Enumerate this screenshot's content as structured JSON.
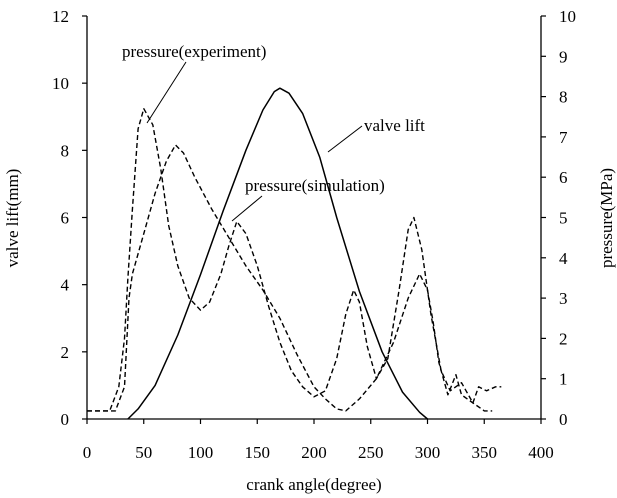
{
  "chart_data": {
    "type": "line",
    "xlabel": "crank angle(degree)",
    "ylabel_left": "valve lift(mm)",
    "ylabel_right": "pressure(MPa)",
    "xlim": [
      0,
      400
    ],
    "ylim_left": [
      0,
      12
    ],
    "ylim_right": [
      0,
      10
    ],
    "x_ticks": [
      "0",
      "50",
      "100",
      "150",
      "200",
      "250",
      "300",
      "350",
      "400"
    ],
    "y_left_ticks": [
      "0",
      "2",
      "4",
      "6",
      "8",
      "10",
      "12"
    ],
    "y_right_ticks": [
      "0",
      "1",
      "2",
      "3",
      "4",
      "5",
      "6",
      "7",
      "8",
      "9",
      "10"
    ],
    "grid": false,
    "legend": "none",
    "series": [
      {
        "name": "valve lift",
        "axis": "left",
        "style": "solid",
        "points": [
          [
            36,
            0
          ],
          [
            45,
            0.3
          ],
          [
            60,
            1.0
          ],
          [
            80,
            2.5
          ],
          [
            100,
            4.3
          ],
          [
            120,
            6.2
          ],
          [
            140,
            8.0
          ],
          [
            155,
            9.2
          ],
          [
            165,
            9.75
          ],
          [
            170,
            9.85
          ],
          [
            178,
            9.7
          ],
          [
            190,
            9.1
          ],
          [
            205,
            7.8
          ],
          [
            220,
            6.0
          ],
          [
            240,
            3.8
          ],
          [
            260,
            2.0
          ],
          [
            278,
            0.8
          ],
          [
            293,
            0.2
          ],
          [
            300,
            0
          ]
        ]
      },
      {
        "name": "pressure(experiment)",
        "axis": "right",
        "style": "dashed",
        "points": [
          [
            0,
            0.2
          ],
          [
            20,
            0.2
          ],
          [
            28,
            0.8
          ],
          [
            33,
            2.0
          ],
          [
            36,
            3.5
          ],
          [
            40,
            5.2
          ],
          [
            45,
            7.2
          ],
          [
            50,
            7.7
          ],
          [
            58,
            7.3
          ],
          [
            65,
            6.2
          ],
          [
            72,
            4.8
          ],
          [
            80,
            3.8
          ],
          [
            90,
            3.0
          ],
          [
            100,
            2.7
          ],
          [
            108,
            2.9
          ],
          [
            118,
            3.6
          ],
          [
            125,
            4.3
          ],
          [
            132,
            4.9
          ],
          [
            140,
            4.6
          ],
          [
            150,
            3.8
          ],
          [
            160,
            2.8
          ],
          [
            170,
            1.9
          ],
          [
            180,
            1.2
          ],
          [
            190,
            0.8
          ],
          [
            200,
            0.55
          ],
          [
            210,
            0.7
          ],
          [
            220,
            1.5
          ],
          [
            228,
            2.6
          ],
          [
            235,
            3.2
          ],
          [
            240,
            2.9
          ],
          [
            247,
            1.8
          ],
          [
            255,
            1.0
          ],
          [
            265,
            1.5
          ],
          [
            275,
            3.2
          ],
          [
            283,
            4.7
          ],
          [
            288,
            5.0
          ],
          [
            295,
            4.2
          ],
          [
            303,
            2.6
          ],
          [
            312,
            1.2
          ],
          [
            320,
            0.7
          ],
          [
            330,
            0.9
          ],
          [
            340,
            0.4
          ],
          [
            345,
            0.8
          ],
          [
            352,
            0.7
          ],
          [
            360,
            0.8
          ],
          [
            365,
            0.8
          ]
        ]
      },
      {
        "name": "pressure(simulation)",
        "axis": "right",
        "style": "dashed",
        "points": [
          [
            0,
            0.2
          ],
          [
            25,
            0.2
          ],
          [
            33,
            0.8
          ],
          [
            37,
            3.0
          ],
          [
            40,
            3.6
          ],
          [
            50,
            4.6
          ],
          [
            60,
            5.6
          ],
          [
            70,
            6.4
          ],
          [
            78,
            6.8
          ],
          [
            85,
            6.6
          ],
          [
            95,
            6.0
          ],
          [
            110,
            5.2
          ],
          [
            125,
            4.5
          ],
          [
            140,
            3.8
          ],
          [
            155,
            3.2
          ],
          [
            170,
            2.5
          ],
          [
            185,
            1.6
          ],
          [
            200,
            0.8
          ],
          [
            210,
            0.5
          ],
          [
            220,
            0.25
          ],
          [
            228,
            0.2
          ],
          [
            240,
            0.5
          ],
          [
            255,
            1.0
          ],
          [
            270,
            1.9
          ],
          [
            283,
            3.0
          ],
          [
            293,
            3.6
          ],
          [
            300,
            3.2
          ],
          [
            305,
            2.4
          ],
          [
            310,
            1.4
          ],
          [
            318,
            0.6
          ],
          [
            325,
            1.1
          ],
          [
            330,
            0.6
          ],
          [
            340,
            0.4
          ],
          [
            350,
            0.2
          ],
          [
            357,
            0.2
          ]
        ]
      }
    ],
    "annotations": [
      "pressure(experiment)",
      "valve lift",
      "pressure(simulation)"
    ]
  }
}
